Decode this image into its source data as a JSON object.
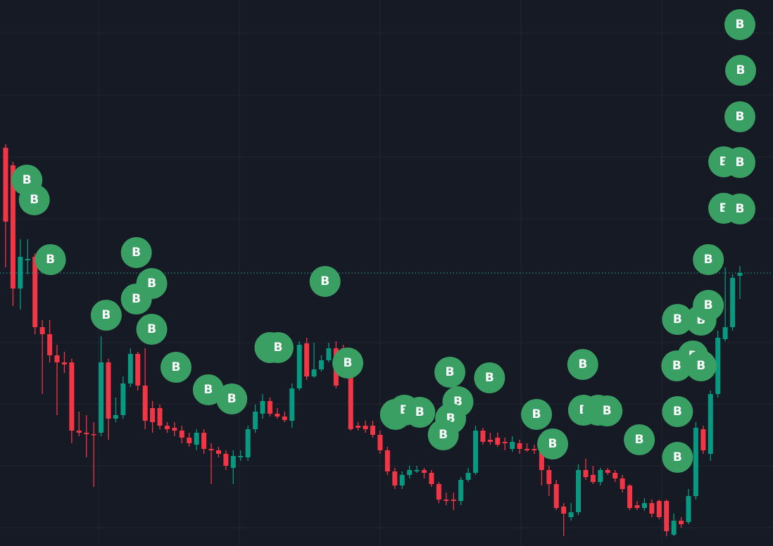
{
  "chart_data": {
    "type": "candlestick",
    "ylim": [
      0,
      776
    ],
    "grid": true,
    "up_color": "#089981",
    "down_color": "#f23645",
    "price_line_color": "#26a69a",
    "open": [
      566,
      541,
      366,
      406,
      411,
      311,
      301,
      271,
      261,
      261,
      164,
      161,
      159,
      161,
      261,
      181,
      186,
      231,
      273,
      228,
      196,
      196,
      171,
      168,
      164,
      154,
      144,
      161,
      138,
      136,
      131,
      111,
      126,
      126,
      166,
      188,
      206,
      188,
      184,
      178,
      224,
      288,
      241,
      251,
      264,
      281,
      281,
      266,
      171,
      171,
      171,
      158,
      136,
      106,
      86,
      101,
      106,
      108,
      104,
      88,
      66,
      66,
      64,
      94,
      104,
      164,
      151,
      154,
      148,
      138,
      146,
      138,
      138,
      141,
      108,
      88,
      56,
      41,
      48,
      108,
      101,
      91,
      108,
      104,
      96,
      86,
      58,
      54,
      61,
      64,
      64,
      16,
      36,
      34,
      71,
      166,
      131,
      216,
      294,
      311,
      384
    ],
    "high": [
      571,
      546,
      436,
      436,
      416,
      321,
      321,
      286,
      276,
      266,
      191,
      186,
      176,
      298,
      266,
      211,
      241,
      281,
      276,
      281,
      206,
      201,
      176,
      176,
      171,
      161,
      166,
      166,
      146,
      141,
      136,
      136,
      136,
      171,
      201,
      216,
      211,
      196,
      191,
      231,
      291,
      296,
      289,
      271,
      289,
      291,
      286,
      271,
      176,
      178,
      178,
      164,
      141,
      111,
      106,
      114,
      114,
      111,
      108,
      91,
      76,
      76,
      98,
      111,
      171,
      168,
      161,
      161,
      154,
      156,
      151,
      146,
      144,
      146,
      114,
      94,
      61,
      61,
      116,
      124,
      114,
      111,
      111,
      108,
      101,
      88,
      64,
      68,
      66,
      66,
      66,
      46,
      41,
      81,
      176,
      171,
      221,
      306,
      396,
      386,
      398
    ],
    "low": [
      396,
      341,
      336,
      386,
      301,
      216,
      261,
      186,
      246,
      146,
      156,
      126,
      84,
      156,
      151,
      176,
      181,
      226,
      221,
      166,
      161,
      166,
      161,
      156,
      146,
      141,
      136,
      131,
      88,
      126,
      108,
      88,
      121,
      121,
      161,
      181,
      184,
      181,
      176,
      168,
      221,
      236,
      239,
      248,
      261,
      224,
      256,
      164,
      164,
      161,
      154,
      131,
      101,
      81,
      81,
      96,
      104,
      96,
      84,
      61,
      58,
      51,
      58,
      91,
      101,
      144,
      144,
      141,
      136,
      134,
      131,
      134,
      131,
      86,
      71,
      51,
      14,
      36,
      44,
      94,
      88,
      86,
      101,
      91,
      76,
      51,
      51,
      50,
      41,
      38,
      14,
      14,
      26,
      31,
      66,
      131,
      121,
      211,
      291,
      306,
      351
    ],
    "close": [
      461,
      366,
      411,
      408,
      311,
      301,
      271,
      261,
      258,
      164,
      161,
      159,
      158,
      261,
      181,
      186,
      231,
      273,
      228,
      178,
      176,
      171,
      166,
      164,
      154,
      146,
      161,
      138,
      136,
      131,
      114,
      128,
      128,
      166,
      191,
      206,
      188,
      184,
      179,
      224,
      286,
      241,
      251,
      264,
      281,
      228,
      271,
      166,
      168,
      166,
      158,
      136,
      106,
      86,
      101,
      108,
      108,
      104,
      88,
      66,
      64,
      64,
      94,
      104,
      164,
      148,
      148,
      144,
      146,
      148,
      138,
      136,
      136,
      108,
      88,
      54,
      46,
      48,
      108,
      98,
      91,
      108,
      104,
      96,
      81,
      54,
      54,
      61,
      46,
      41,
      21,
      36,
      31,
      71,
      168,
      136,
      216,
      296,
      311,
      381,
      388
    ],
    "markers": {
      "label": "B",
      "color": "#3a9f63",
      "x": [
        2.9,
        3.9,
        6.1,
        17.8,
        19.9,
        17.8,
        13.7,
        19.9,
        23.2,
        27.6,
        30.8,
        36.0,
        37.1,
        43.5,
        46.6,
        60.5,
        65.9,
        53.1,
        54.3,
        56.4,
        61.6,
        60.6,
        59.6,
        72.3,
        74.5,
        78.6,
        78.7,
        80.7,
        81.9,
        86.3,
        91.5,
        94.7,
        95.7,
        93.6,
        91.4,
        94.7,
        91.5,
        91.5,
        95.7,
        97.8,
        100,
        97.8,
        100,
        100,
        100.1,
        100
      ],
      "y": [
        520,
        492,
        407,
        417,
        373,
        351,
        328,
        308,
        254,
        222,
        209,
        282,
        282,
        376,
        260,
        247,
        239,
        187,
        193,
        190,
        205,
        181,
        158,
        187,
        145,
        258,
        193,
        193,
        192,
        151,
        322,
        321,
        342,
        270,
        256,
        256,
        191,
        126,
        407,
        480,
        479,
        546,
        545,
        610,
        676,
        741
      ]
    }
  }
}
